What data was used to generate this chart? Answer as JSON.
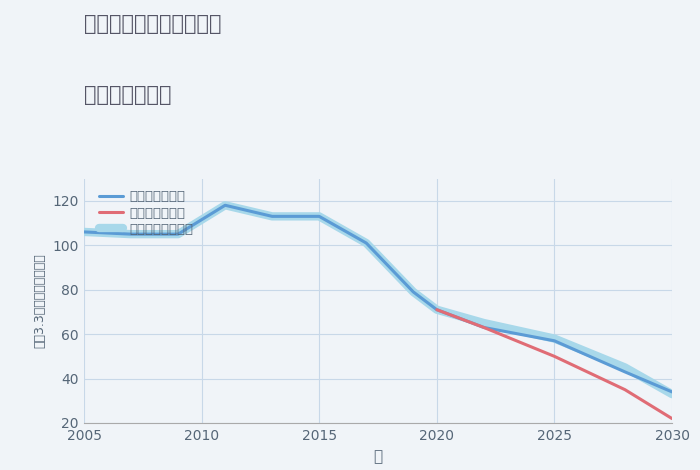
{
  "title_line1": "兵庫県尼崎市東難波町の",
  "title_line2": "土地の価格推移",
  "xlabel": "年",
  "ylabel": "坪（3.3㎡）単価（万円）",
  "xlim": [
    2005,
    2030
  ],
  "ylim": [
    20,
    130
  ],
  "yticks": [
    20,
    40,
    60,
    80,
    100,
    120
  ],
  "xticks": [
    2005,
    2010,
    2015,
    2020,
    2025,
    2030
  ],
  "good_scenario": {
    "label": "グッドシナリオ",
    "color": "#5b9bd5",
    "linewidth": 2.2,
    "years": [
      2005,
      2007,
      2009,
      2011,
      2013,
      2015,
      2017,
      2019,
      2020,
      2022,
      2025,
      2028,
      2030
    ],
    "values": [
      106,
      105,
      105,
      118,
      113,
      113,
      101,
      79,
      71,
      63,
      57,
      43,
      34
    ]
  },
  "bad_scenario": {
    "label": "バッドシナリオ",
    "color": "#e06c75",
    "linewidth": 2.2,
    "years": [
      2020,
      2022,
      2025,
      2028,
      2030
    ],
    "values": [
      71,
      63,
      50,
      35,
      22
    ]
  },
  "normal_scenario": {
    "label": "ノーマルシナリオ",
    "color": "#a8d8ea",
    "linewidth": 6.0,
    "years": [
      2005,
      2007,
      2009,
      2011,
      2013,
      2015,
      2017,
      2019,
      2020,
      2022,
      2025,
      2028,
      2030
    ],
    "values": [
      106,
      105,
      105,
      118,
      113,
      113,
      101,
      79,
      71,
      65,
      58,
      45,
      33
    ]
  },
  "background_color": "#f0f4f8",
  "grid_color": "#c8d8e8",
  "title_color": "#555566",
  "axis_color": "#aaaaaa",
  "tick_color": "#556677"
}
